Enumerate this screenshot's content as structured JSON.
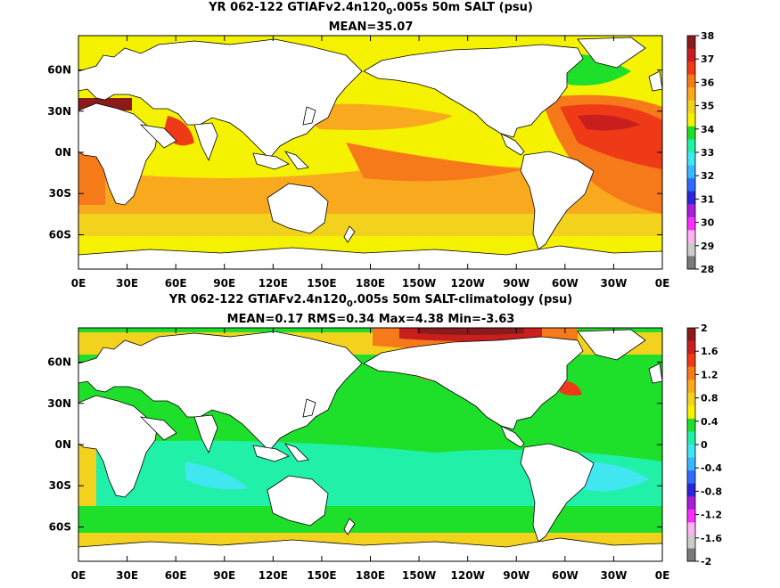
{
  "panels": [
    {
      "title_main": "YR 062-122 GTIAFv2.4n120",
      "title_sub": "0",
      "title_rest": ".005s 50m SALT (psu)",
      "stats": "MEAN=35.07",
      "colorbar": {
        "labels": [
          "38",
          "37",
          "36",
          "35",
          "34",
          "33",
          "32",
          "31",
          "30",
          "29",
          "28"
        ],
        "colors": [
          "#8b1a1a",
          "#c81e1e",
          "#ee3a16",
          "#f77a1a",
          "#f9a91e",
          "#f3d21e",
          "#f5f200",
          "#1ee02a",
          "#20f0a8",
          "#40e6f0",
          "#38b7ff",
          "#2f6cff",
          "#2b24d8",
          "#a81ed8",
          "#ff2cff",
          "#ffb2f2",
          "#cccccc",
          "#7a7a7a"
        ]
      },
      "yticks": [
        "60N",
        "30N",
        "0N",
        "30S",
        "60S"
      ],
      "xticks": [
        "0E",
        "30E",
        "60E",
        "90E",
        "120E",
        "150E",
        "180E",
        "150W",
        "120W",
        "90W",
        "60W",
        "30W",
        "0E"
      ]
    },
    {
      "title_main": "YR 062-122 GTIAFv2.4n120",
      "title_sub": "0",
      "title_rest": ".005s 50m SALT-climatology (psu)",
      "stats": "MEAN=0.17   RMS=0.34   Max=4.38   Min=-3.63",
      "colorbar": {
        "labels": [
          "2",
          "1.6",
          "1.2",
          "0.8",
          "0.4",
          "0",
          "-0.4",
          "-0.8",
          "-1.2",
          "-1.6",
          "-2"
        ],
        "colors": [
          "#8b1a1a",
          "#c81e1e",
          "#ee3a16",
          "#f77a1a",
          "#f9a91e",
          "#f3d21e",
          "#f5f200",
          "#1ee02a",
          "#20f0a8",
          "#40e6f0",
          "#38b7ff",
          "#2f6cff",
          "#2b24d8",
          "#a81ed8",
          "#ff2cff",
          "#ffb2f2",
          "#cccccc",
          "#7a7a7a"
        ]
      },
      "yticks": [
        "60N",
        "30N",
        "0N",
        "30S",
        "60S"
      ],
      "xticks": [
        "0E",
        "30E",
        "60E",
        "90E",
        "120E",
        "150E",
        "180E",
        "150W",
        "120W",
        "90W",
        "60W",
        "30W",
        "0E"
      ]
    }
  ]
}
